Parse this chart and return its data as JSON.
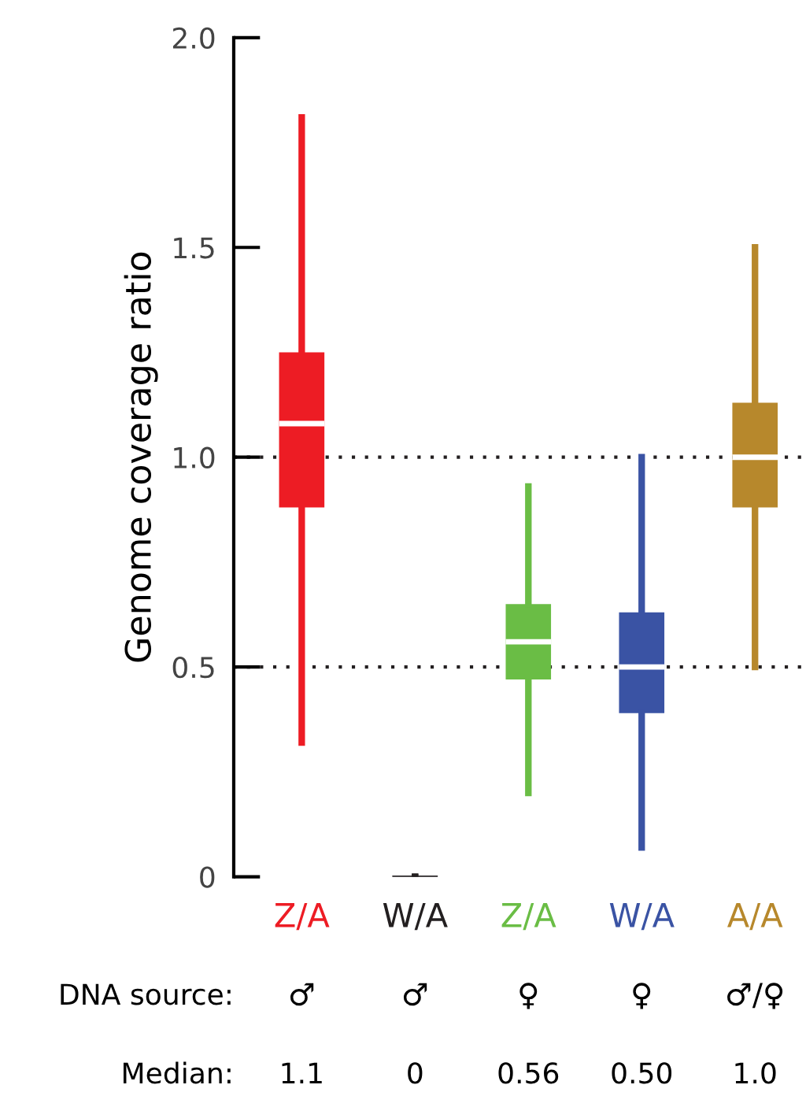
{
  "chart_data": {
    "type": "box",
    "ylabel": "Genome coverage ratio",
    "categories": [
      "Z/A",
      "W/A",
      "Z/A",
      "W/A",
      "A/A"
    ],
    "colors": [
      "#ed1c24",
      "#231f20",
      "#6abd45",
      "#3a53a4",
      "#b7882c"
    ],
    "boxes": [
      {
        "low": 0.32,
        "q1": 0.88,
        "median": 1.08,
        "q3": 1.25,
        "high": 1.81
      },
      {
        "low": 0,
        "q1": 0,
        "median": 0,
        "q3": 0,
        "high": 0
      },
      {
        "low": 0.2,
        "q1": 0.47,
        "median": 0.56,
        "q3": 0.65,
        "high": 0.93
      },
      {
        "low": 0.07,
        "q1": 0.39,
        "median": 0.5,
        "q3": 0.63,
        "high": 1.0
      },
      {
        "low": 0.5,
        "q1": 0.88,
        "median": 1.0,
        "q3": 1.13,
        "high": 1.5
      }
    ],
    "ylim": [
      0,
      2.0
    ],
    "yticks": [
      0,
      {
        "value": 0.5,
        "label": "0.5"
      },
      {
        "value": 1,
        "label": "1.0"
      },
      {
        "value": 1.5,
        "label": "1.5"
      },
      {
        "value": 2,
        "label": "2.0"
      }
    ],
    "ref_lines": [
      {
        "axis": "y",
        "value": 1,
        "line_style": "dotted",
        "color": "#231f20"
      },
      {
        "axis": "y",
        "value": 0.5,
        "line_style": "dotted",
        "color": "#231f20"
      }
    ],
    "annotations": [
      "DNA source:",
      "♂",
      "♂",
      "♀",
      "♀",
      "♂/♀",
      "Median:",
      "1.1",
      "0",
      "0.56",
      "0.50",
      "1.0"
    ],
    "grid": false
  }
}
